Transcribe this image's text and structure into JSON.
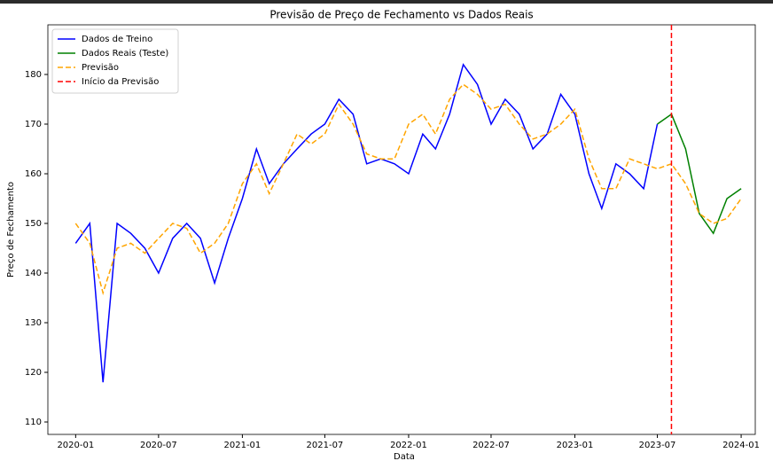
{
  "chart_data": {
    "type": "line",
    "title": "Previsão de Preço de Fechamento vs Dados Reais",
    "xlabel": "Data",
    "ylabel": "Preço de Fechamento",
    "xlim": [
      "2019-11",
      "2024-02"
    ],
    "xticks": [
      "2020-01",
      "2020-07",
      "2021-01",
      "2021-07",
      "2022-01",
      "2022-07",
      "2023-01",
      "2023-07",
      "2024-01"
    ],
    "ylim": [
      107.5,
      190
    ],
    "yticks": [
      110,
      120,
      130,
      140,
      150,
      160,
      170,
      180
    ],
    "legend": "upper-left",
    "series": [
      {
        "name": "Dados de Treino",
        "color": "#0000ff",
        "dash": "solid",
        "x": [
          "2020-01",
          "2020-02",
          "2020-03",
          "2020-04",
          "2020-05",
          "2020-06",
          "2020-07",
          "2020-08",
          "2020-09",
          "2020-10",
          "2020-11",
          "2020-12",
          "2021-01",
          "2021-02",
          "2021-03",
          "2021-04",
          "2021-05",
          "2021-06",
          "2021-07",
          "2021-08",
          "2021-09",
          "2021-10",
          "2021-11",
          "2021-12",
          "2022-01",
          "2022-02",
          "2022-03",
          "2022-04",
          "2022-05",
          "2022-06",
          "2022-07",
          "2022-08",
          "2022-09",
          "2022-10",
          "2022-11",
          "2022-12",
          "2023-01",
          "2023-02",
          "2023-03",
          "2023-04",
          "2023-05",
          "2023-06",
          "2023-07"
        ],
        "values": [
          146,
          150,
          118,
          150,
          148,
          145,
          140,
          147,
          150,
          147,
          138,
          147,
          155,
          165,
          158,
          162,
          165,
          168,
          170,
          175,
          172,
          162,
          163,
          162,
          160,
          168,
          165,
          172,
          182,
          178,
          170,
          175,
          172,
          165,
          168,
          176,
          172,
          160,
          153,
          162,
          160,
          157,
          170
        ]
      },
      {
        "name": "Dados Reais (Teste)",
        "color": "#008000",
        "dash": "solid",
        "x": [
          "2023-07",
          "2023-08",
          "2023-09",
          "2023-10",
          "2023-11",
          "2023-12",
          "2024-01"
        ],
        "values": [
          170,
          172,
          165,
          152,
          148,
          155,
          157
        ]
      },
      {
        "name": "Previsão",
        "color": "#ffa500",
        "dash": "dashed",
        "x": [
          "2020-01",
          "2020-02",
          "2020-03",
          "2020-04",
          "2020-05",
          "2020-06",
          "2020-07",
          "2020-08",
          "2020-09",
          "2020-10",
          "2020-11",
          "2020-12",
          "2021-01",
          "2021-02",
          "2021-03",
          "2021-04",
          "2021-05",
          "2021-06",
          "2021-07",
          "2021-08",
          "2021-09",
          "2021-10",
          "2021-11",
          "2021-12",
          "2022-01",
          "2022-02",
          "2022-03",
          "2022-04",
          "2022-05",
          "2022-06",
          "2022-07",
          "2022-08",
          "2022-09",
          "2022-10",
          "2022-11",
          "2022-12",
          "2023-01",
          "2023-02",
          "2023-03",
          "2023-04",
          "2023-05",
          "2023-06",
          "2023-07",
          "2023-08",
          "2023-09",
          "2023-10",
          "2023-11",
          "2023-12",
          "2024-01"
        ],
        "values": [
          150,
          146,
          136,
          145,
          146,
          144,
          147,
          150,
          149,
          144,
          146,
          150,
          158,
          162,
          156,
          162,
          168,
          166,
          168,
          174,
          170,
          164,
          163,
          163,
          170,
          172,
          168,
          175,
          178,
          176,
          173,
          174,
          170,
          167,
          168,
          170,
          173,
          163,
          157,
          157,
          163,
          162,
          161,
          162,
          158,
          152,
          150,
          151,
          155
        ]
      }
    ],
    "vline": {
      "name": "Início da Previsão",
      "color": "#ff0000",
      "x": "2023-08"
    }
  }
}
